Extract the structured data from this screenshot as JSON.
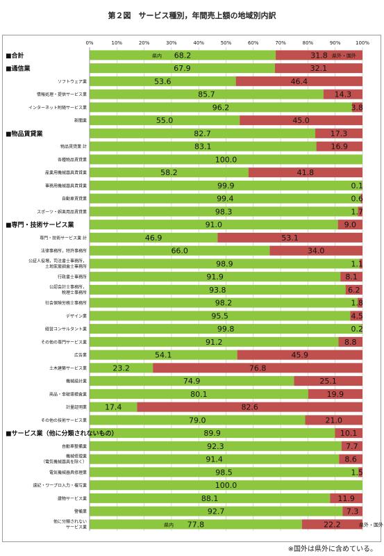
{
  "chart_data": {
    "type": "bar",
    "stacked": true,
    "orientation": "horizontal",
    "title": "第２図　サービス種別，年間売上額の地域別内訳",
    "note": "※国外は県外に含めている。",
    "xlim": [
      0,
      100
    ],
    "x_ticks": [
      "0%",
      "10%",
      "20%",
      "30%",
      "40%",
      "50%",
      "60%",
      "70%",
      "80%",
      "90%",
      "100%"
    ],
    "series": [
      {
        "name": "県内",
        "color": "#8dc63f"
      },
      {
        "name": "県外・国外",
        "color": "#c0504d"
      }
    ],
    "in_bar_labels": {
      "first_left": "県内",
      "first_right": "県外・国外",
      "last_left": "県内",
      "last_right": "県外・国外"
    },
    "categories": [
      {
        "label": "■合計",
        "major": true,
        "in": 68.2,
        "out": 31.8,
        "in_label": "68.2",
        "out_label": "31.8"
      },
      {
        "label": "■通信業",
        "major": true,
        "in": 67.9,
        "out": 32.1,
        "in_label": "67.9",
        "out_label": "32.1"
      },
      {
        "label": "ソフトウェア業",
        "major": false,
        "in": 53.6,
        "out": 46.4,
        "in_label": "53.6",
        "out_label": "46.4"
      },
      {
        "label": "情報処理・提供サービス業",
        "major": false,
        "in": 85.7,
        "out": 14.3,
        "in_label": "85.7",
        "out_label": "14.3"
      },
      {
        "label": "インターネット附随サービス業",
        "major": false,
        "in": 96.2,
        "out": 3.8,
        "in_label": "96.2",
        "out_label": "3.8"
      },
      {
        "label": "新聞業",
        "major": false,
        "in": 55.0,
        "out": 45.0,
        "in_label": "55.0",
        "out_label": "45.0"
      },
      {
        "label": "■物品賃貸業",
        "major": true,
        "in": 82.7,
        "out": 17.3,
        "in_label": "82.7",
        "out_label": "17.3"
      },
      {
        "label": "物品賃貸業 計",
        "major": false,
        "in": 83.1,
        "out": 16.9,
        "in_label": "83.1",
        "out_label": "16.9"
      },
      {
        "label": "各種物品賃貸業",
        "major": false,
        "in": 100.0,
        "out": 0,
        "in_label": "100.0",
        "out_label": ""
      },
      {
        "label": "産業用機械器具賃貸業",
        "major": false,
        "in": 58.2,
        "out": 41.8,
        "in_label": "58.2",
        "out_label": "41.8"
      },
      {
        "label": "事務用機械器具賃貸業",
        "major": false,
        "in": 99.9,
        "out": 0.1,
        "in_label": "99.9",
        "out_label": "0.1"
      },
      {
        "label": "自動車賃貸業",
        "major": false,
        "in": 99.4,
        "out": 0.6,
        "in_label": "99.4",
        "out_label": "0.6"
      },
      {
        "label": "スポーツ・娯楽用品賃貸業",
        "major": false,
        "in": 98.3,
        "out": 1.7,
        "in_label": "98.3",
        "out_label": "1.7"
      },
      {
        "label": "■専門・技術サービス業",
        "major": true,
        "in": 91.0,
        "out": 9.0,
        "in_label": "91.0",
        "out_label": "9.0"
      },
      {
        "label": "専門・技術サービス業 計",
        "major": false,
        "in": 46.9,
        "out": 53.1,
        "in_label": "46.9",
        "out_label": "53.1"
      },
      {
        "label": "法律事務所，特許事務所",
        "major": false,
        "in": 66.0,
        "out": 34.0,
        "in_label": "66.0",
        "out_label": "34.0"
      },
      {
        "label": "公証人役場，司法書士事務所，\n土地家屋調査士事務所",
        "major": false,
        "in": 98.9,
        "out": 1.1,
        "in_label": "98.9",
        "out_label": "1.1"
      },
      {
        "label": "行政書士事務所",
        "major": false,
        "in": 91.9,
        "out": 8.1,
        "in_label": "91.9",
        "out_label": "8.1"
      },
      {
        "label": "公認会計士事務所，\n税理士事務所",
        "major": false,
        "in": 93.8,
        "out": 6.2,
        "in_label": "93.8",
        "out_label": "6.2"
      },
      {
        "label": "社会保険労務士事務所",
        "major": false,
        "in": 98.2,
        "out": 1.8,
        "in_label": "98.2",
        "out_label": "1.8"
      },
      {
        "label": "デザイン業",
        "major": false,
        "in": 95.5,
        "out": 4.5,
        "in_label": "95.5",
        "out_label": "4.5"
      },
      {
        "label": "経営コンサルタント業",
        "major": false,
        "in": 99.8,
        "out": 0.2,
        "in_label": "99.8",
        "out_label": "0.2"
      },
      {
        "label": "その他の専門サービス業",
        "major": false,
        "in": 91.2,
        "out": 8.8,
        "in_label": "91.2",
        "out_label": "8.8"
      },
      {
        "label": "広告業",
        "major": false,
        "in": 54.1,
        "out": 45.9,
        "in_label": "54.1",
        "out_label": "45.9"
      },
      {
        "label": "土木建築サービス業",
        "major": false,
        "in": 23.2,
        "out": 76.8,
        "in_label": "23.2",
        "out_label": "76.8"
      },
      {
        "label": "機械設計業",
        "major": false,
        "in": 74.9,
        "out": 25.1,
        "in_label": "74.9",
        "out_label": "25.1"
      },
      {
        "label": "商品・非破壊検査業",
        "major": false,
        "in": 80.1,
        "out": 19.9,
        "in_label": "80.1",
        "out_label": "19.9"
      },
      {
        "label": "計量証明業",
        "major": false,
        "in": 17.4,
        "out": 82.6,
        "in_label": "17.4",
        "out_label": "82.6"
      },
      {
        "label": "その他の技術サービス業",
        "major": false,
        "in": 79.0,
        "out": 21.0,
        "in_label": "79.0",
        "out_label": "21.0"
      },
      {
        "label": "■サービス業（他に分類されないもの）",
        "major": true,
        "in": 89.9,
        "out": 10.1,
        "in_label": "89.9",
        "out_label": "10.1"
      },
      {
        "label": "自動車整備業",
        "major": false,
        "in": 92.3,
        "out": 7.7,
        "in_label": "92.3",
        "out_label": "7.7"
      },
      {
        "label": "機械修理業\n（電気機械器具を除く）",
        "major": false,
        "in": 91.4,
        "out": 8.6,
        "in_label": "91.4",
        "out_label": "8.6"
      },
      {
        "label": "電気機械器具修理業",
        "major": false,
        "in": 98.5,
        "out": 1.5,
        "in_label": "98.5",
        "out_label": "1.5"
      },
      {
        "label": "速記・ワープロ入力・複写業",
        "major": false,
        "in": 100.0,
        "out": 0,
        "in_label": "100.0",
        "out_label": ""
      },
      {
        "label": "建物サービス業",
        "major": false,
        "in": 88.1,
        "out": 11.9,
        "in_label": "88.1",
        "out_label": "11.9"
      },
      {
        "label": "警備業",
        "major": false,
        "in": 92.7,
        "out": 7.3,
        "in_label": "92.7",
        "out_label": "7.3"
      },
      {
        "label": "他に分類されない\nサービス業",
        "major": false,
        "in": 77.8,
        "out": 22.2,
        "in_label": "77.8",
        "out_label": "22.2"
      }
    ]
  }
}
